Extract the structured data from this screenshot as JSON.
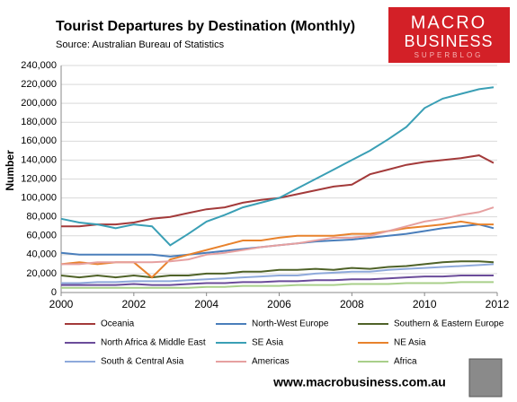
{
  "chart_data": {
    "type": "line",
    "title": "Tourist Departures by Destination (Monthly)",
    "subtitle": "Source: Australian Bureau of Statistics",
    "y_label": "Number",
    "x": [
      2000,
      2000.5,
      2001,
      2001.5,
      2002,
      2002.5,
      2003,
      2003.5,
      2004,
      2004.5,
      2005,
      2005.5,
      2006,
      2006.5,
      2007,
      2007.5,
      2008,
      2008.5,
      2009,
      2009.5,
      2010,
      2010.5,
      2011,
      2011.5,
      2011.9
    ],
    "xlim": [
      2000,
      2012
    ],
    "xticks": [
      2000,
      2002,
      2004,
      2006,
      2008,
      2010,
      2012
    ],
    "ylim": [
      0,
      240000
    ],
    "yticks": [
      0,
      {
        "value": 20000,
        "label": "20,000"
      },
      {
        "value": 40000,
        "label": "40,000"
      },
      {
        "value": 60000,
        "label": "60,000"
      },
      {
        "value": 80000,
        "label": "80,000"
      },
      {
        "value": 100000,
        "label": "100,000"
      },
      {
        "value": 120000,
        "label": "120,000"
      },
      {
        "value": 140000,
        "label": "140,000"
      },
      {
        "value": 160000,
        "label": "160,000"
      },
      {
        "value": 180000,
        "label": "180,000"
      },
      {
        "value": 200000,
        "label": "200,000"
      },
      {
        "value": 220000,
        "label": "220,000"
      },
      {
        "value": 240000,
        "label": "240,000"
      }
    ],
    "grid": true,
    "series": [
      {
        "name": "Oceania",
        "color": "#a33a3a",
        "values": [
          70000,
          70000,
          72000,
          72000,
          74000,
          78000,
          80000,
          84000,
          88000,
          90000,
          95000,
          98000,
          100000,
          104000,
          108000,
          112000,
          114000,
          125000,
          130000,
          135000,
          138000,
          140000,
          142000,
          145000,
          137000
        ]
      },
      {
        "name": "North-West Europe",
        "color": "#4a7ebb",
        "values": [
          42000,
          40000,
          40000,
          40000,
          40000,
          40000,
          38000,
          40000,
          42000,
          44000,
          46000,
          48000,
          50000,
          52000,
          54000,
          55000,
          56000,
          58000,
          60000,
          62000,
          65000,
          68000,
          70000,
          72000,
          68000
        ]
      },
      {
        "name": "Southern & Eastern Europe",
        "color": "#4f6228",
        "values": [
          18000,
          16000,
          18000,
          16000,
          18000,
          16000,
          18000,
          18000,
          20000,
          20000,
          22000,
          22000,
          24000,
          24000,
          25000,
          24000,
          26000,
          25000,
          27000,
          28000,
          30000,
          32000,
          33000,
          33000,
          32000
        ]
      },
      {
        "name": "North Africa & Middle East",
        "color": "#6b4c9a",
        "values": [
          8000,
          8000,
          8000,
          8000,
          9000,
          8000,
          8000,
          9000,
          10000,
          10000,
          11000,
          11000,
          12000,
          12000,
          13000,
          13000,
          14000,
          14000,
          15000,
          16000,
          17000,
          17000,
          18000,
          18000,
          18000
        ]
      },
      {
        "name": "SE Asia",
        "color": "#3a9fb5",
        "values": [
          78000,
          74000,
          72000,
          68000,
          72000,
          70000,
          50000,
          62000,
          75000,
          82000,
          90000,
          95000,
          100000,
          110000,
          120000,
          130000,
          140000,
          150000,
          162000,
          175000,
          195000,
          205000,
          210000,
          215000,
          217000
        ]
      },
      {
        "name": "NE Asia",
        "color": "#e8822c",
        "values": [
          30000,
          32000,
          30000,
          32000,
          32000,
          16000,
          35000,
          40000,
          45000,
          50000,
          55000,
          55000,
          58000,
          60000,
          60000,
          60000,
          62000,
          62000,
          65000,
          68000,
          70000,
          72000,
          75000,
          72000,
          72000
        ]
      },
      {
        "name": "South & Central Asia",
        "color": "#8ea9db",
        "values": [
          10000,
          10000,
          11000,
          11000,
          12000,
          12000,
          12000,
          13000,
          14000,
          15000,
          16000,
          17000,
          18000,
          18000,
          20000,
          21000,
          22000,
          22000,
          24000,
          25000,
          26000,
          27000,
          28000,
          29000,
          30000
        ]
      },
      {
        "name": "Americas",
        "color": "#e6a0a0",
        "values": [
          30000,
          30000,
          32000,
          32000,
          32000,
          32000,
          33000,
          35000,
          40000,
          42000,
          45000,
          48000,
          50000,
          52000,
          55000,
          58000,
          58000,
          60000,
          65000,
          70000,
          75000,
          78000,
          82000,
          85000,
          90000
        ]
      },
      {
        "name": "Africa",
        "color": "#a8cf8a",
        "values": [
          5000,
          5000,
          5000,
          5000,
          5000,
          5000,
          5000,
          5000,
          6000,
          6000,
          7000,
          7000,
          7000,
          8000,
          8000,
          8000,
          9000,
          9000,
          9000,
          10000,
          10000,
          10000,
          11000,
          11000,
          11000
        ]
      }
    ]
  },
  "branding": {
    "logo_top": "MACRO",
    "logo_middle": "BUSINESS",
    "logo_bottom": "SUPERBLOG",
    "url": "www.macrobusiness.com.au"
  }
}
